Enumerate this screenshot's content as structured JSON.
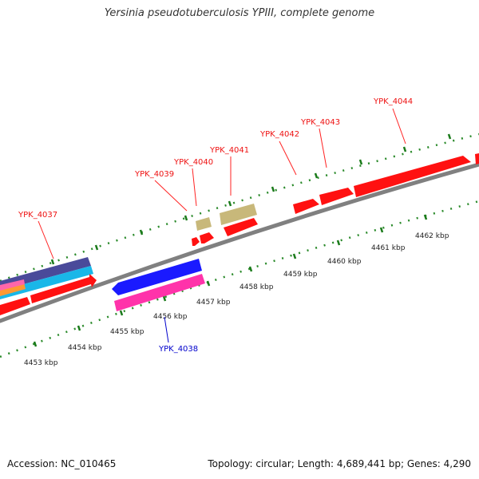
{
  "title": "Yersinia pseudotuberculosis YPIII, complete genome",
  "footer": {
    "accession": "Accession: NC_010465",
    "stats": "Topology: circular; Length: 4,689,441 bp; Genes: 4,290"
  },
  "colors": {
    "gene_label_forward": "#ff0000",
    "gene_label_reverse": "#0000cc",
    "tick": "#1a7a1a",
    "backbone": "#808080"
  },
  "scale_labels": [
    "4453 kbp",
    "4454 kbp",
    "4455 kbp",
    "4456 kbp",
    "4457 kbp",
    "4458 kbp",
    "4459 kbp",
    "4460 kbp",
    "4461 kbp",
    "4462 kbp"
  ],
  "gene_labels": [
    {
      "text": "YPK_4037",
      "strand": "forward"
    },
    {
      "text": "YPK_4038",
      "strand": "reverse"
    },
    {
      "text": "YPK_4039",
      "strand": "forward"
    },
    {
      "text": "YPK_4040",
      "strand": "forward"
    },
    {
      "text": "YPK_4041",
      "strand": "forward"
    },
    {
      "text": "YPK_4042",
      "strand": "forward"
    },
    {
      "text": "YPK_4043",
      "strand": "forward"
    },
    {
      "text": "YPK_4044",
      "strand": "forward"
    }
  ]
}
